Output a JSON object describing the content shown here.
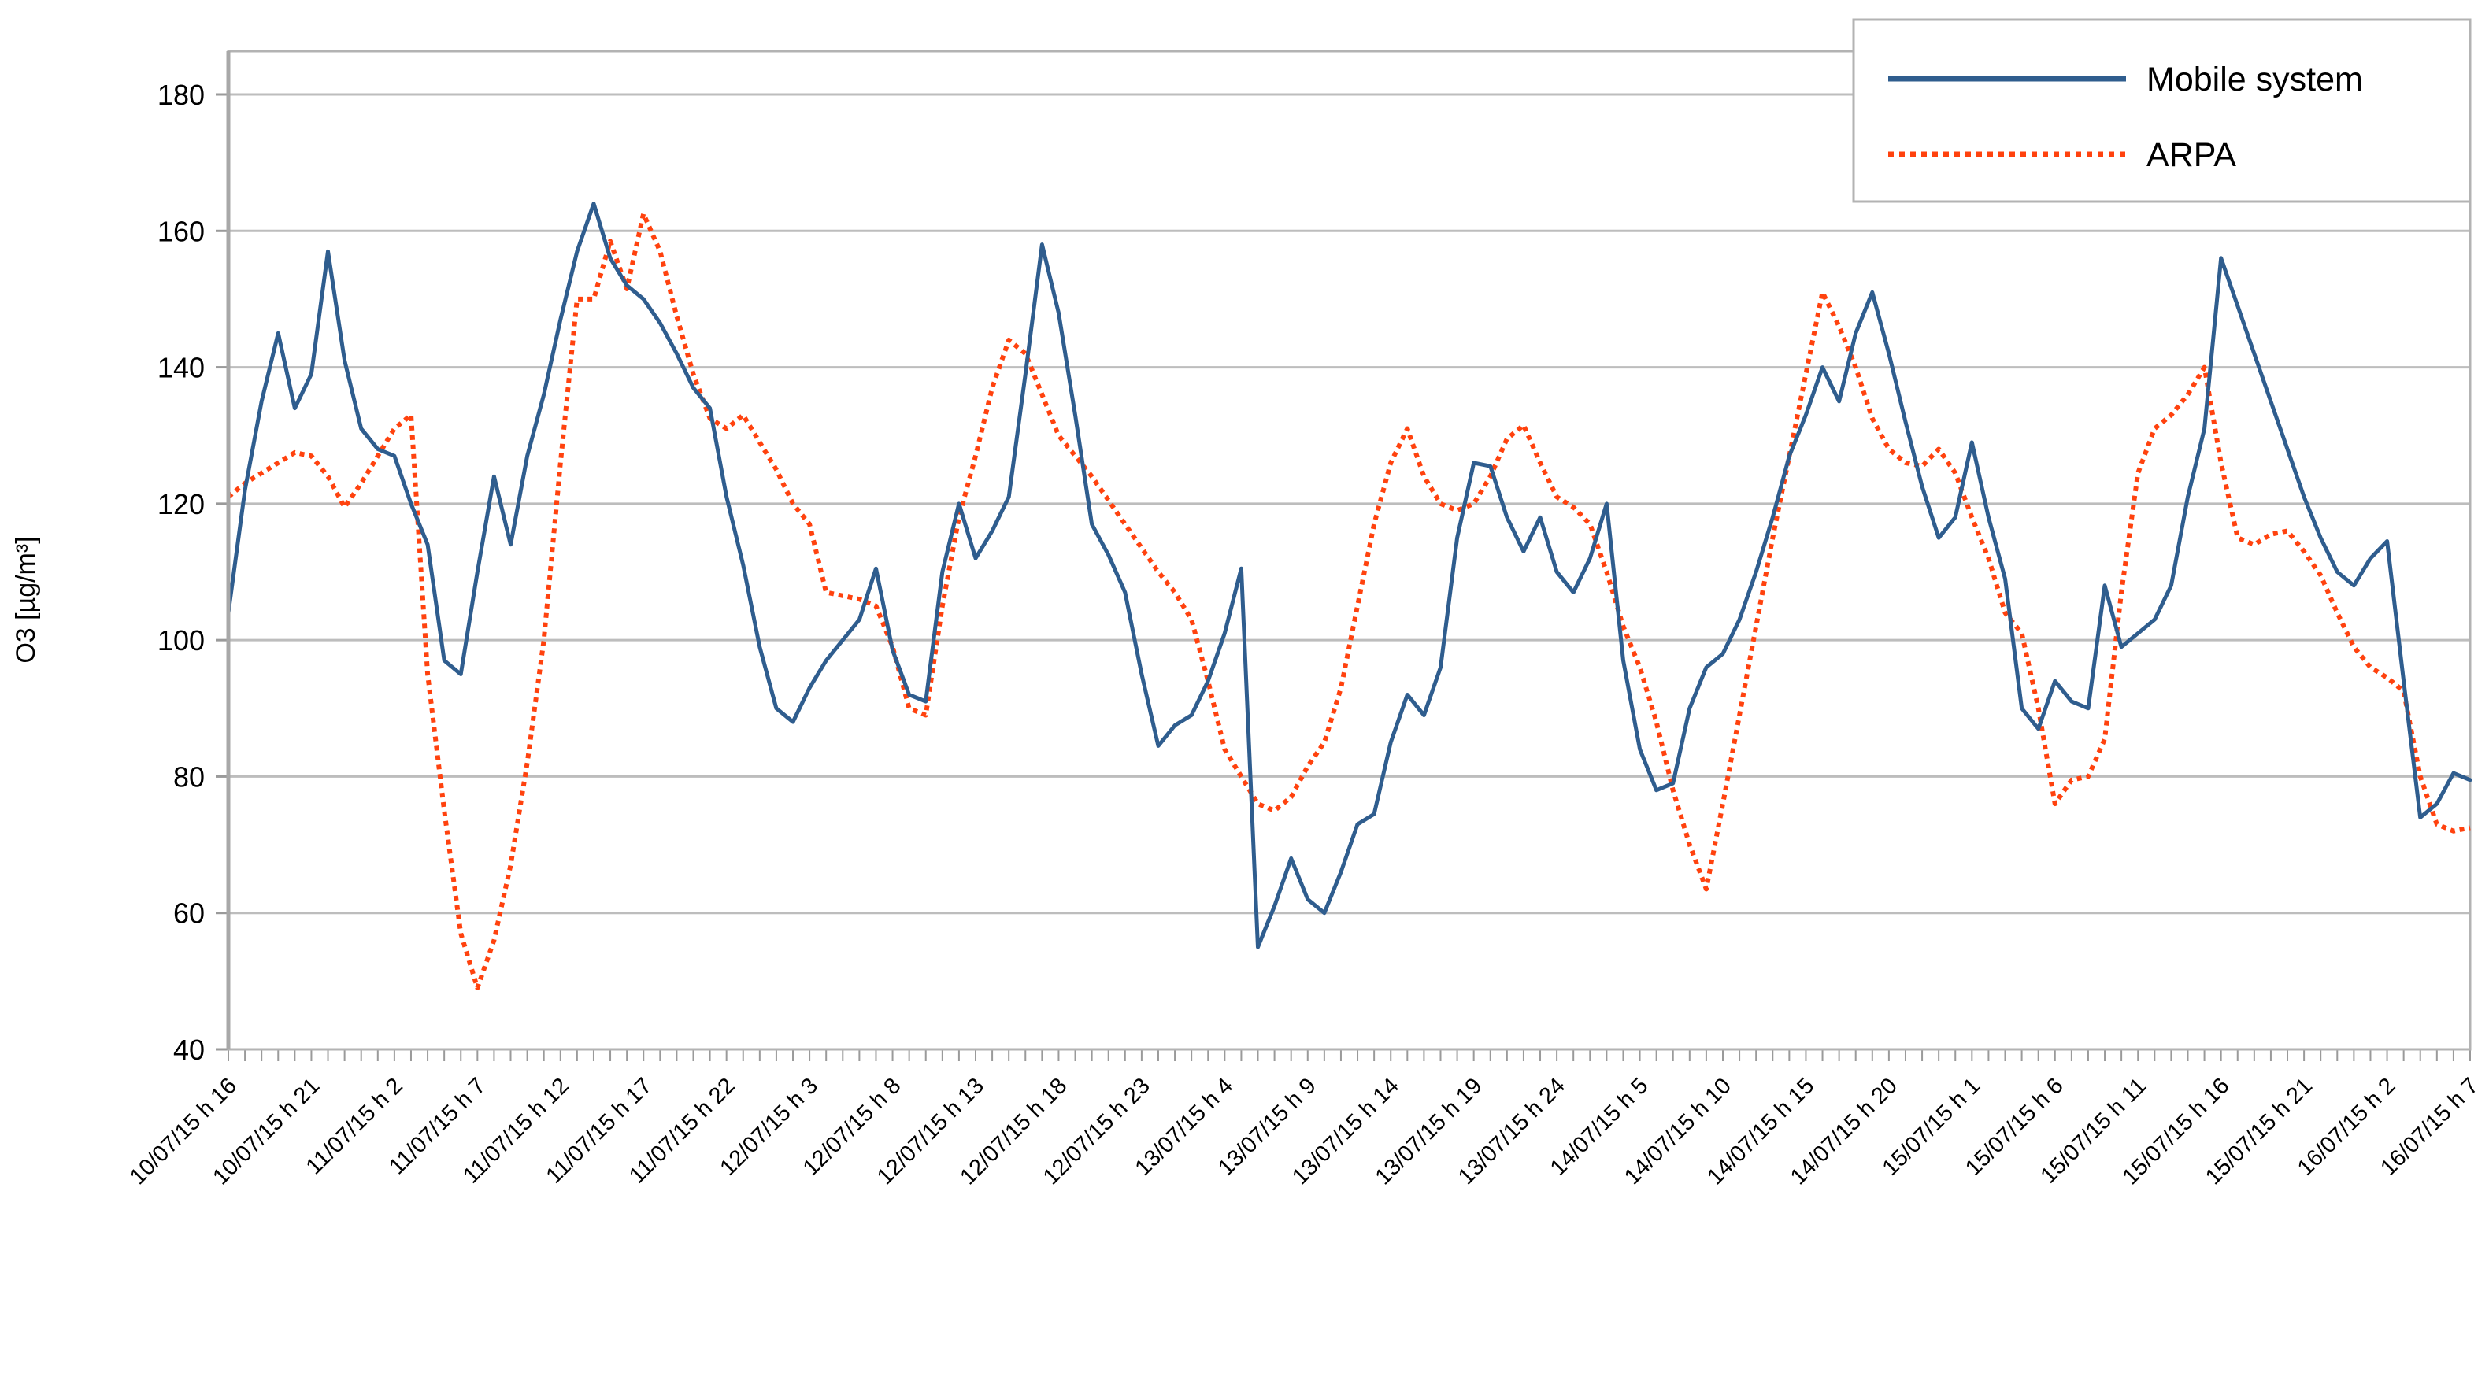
{
  "chart_data": {
    "type": "line",
    "title": "",
    "ylabel": "O3 [µg/m³]",
    "xlabel": "",
    "ylim": [
      40,
      186
    ],
    "yticks": [
      40,
      60,
      80,
      100,
      120,
      140,
      160,
      180
    ],
    "grid": true,
    "legend_position": "top-right",
    "points_count": 136,
    "x_label_every": 5,
    "x_tick_labels": [
      "10/07/15 h 16",
      "10/07/15 h 21",
      "11/07/15 h 2",
      "11/07/15 h 7",
      "11/07/15 h 12",
      "11/07/15 h 17",
      "11/07/15 h 22",
      "12/07/15 h 3",
      "12/07/15 h 8",
      "12/07/15 h 13",
      "12/07/15 h 18",
      "12/07/15 h 23",
      "13/07/15 h 4",
      "13/07/15 h 9",
      "13/07/15 h 14",
      "13/07/15 h 19",
      "13/07/15 h 24",
      "14/07/15 h 5",
      "14/07/15 h 10",
      "14/07/15 h 15",
      "14/07/15 h 20",
      "15/07/15 h 1",
      "15/07/15 h 6",
      "15/07/15 h 11",
      "15/07/15 h 16",
      "15/07/15 h 21",
      "16/07/15 h 2",
      "16/07/15 h 7"
    ],
    "series": [
      {
        "name": "Mobile system",
        "color": "#2F5D8E",
        "style": "solid",
        "values": [
          104,
          122,
          135,
          145,
          134,
          139,
          157,
          141,
          131,
          128,
          127,
          120,
          114,
          97,
          95,
          110,
          124,
          114,
          127,
          136,
          147,
          157,
          164,
          156,
          152,
          150,
          146.5,
          142,
          137,
          134,
          121,
          111,
          99,
          90,
          88,
          93,
          97,
          100,
          103,
          110.5,
          98.5,
          92,
          91,
          110,
          120,
          112,
          116,
          121,
          139,
          158,
          148,
          133,
          117,
          112.5,
          107,
          95,
          84.5,
          87.5,
          89,
          94,
          101,
          110.5,
          55,
          61,
          68,
          62,
          60,
          66,
          73,
          74.5,
          85,
          92,
          89,
          96,
          115,
          126,
          125.5,
          118,
          113,
          118,
          110,
          107,
          112,
          120,
          97,
          84,
          78,
          79,
          90,
          96,
          98,
          103,
          110,
          118,
          127,
          133,
          140,
          135,
          145,
          151,
          142,
          132,
          122.5,
          115,
          118,
          129,
          118,
          109,
          90,
          87,
          94,
          91,
          90,
          108,
          99,
          101,
          103,
          108,
          121,
          131,
          156,
          149,
          142,
          135,
          128,
          121,
          115,
          110,
          108,
          112,
          114.5,
          94,
          74,
          76,
          80.5,
          79.5
        ]
      },
      {
        "name": "ARPA",
        "color": "#FF420E",
        "style": "dotted",
        "values": [
          121,
          123,
          124.5,
          126,
          127.5,
          127,
          124,
          119.5,
          123,
          127,
          131,
          133,
          95,
          75,
          57,
          49,
          56,
          67,
          82,
          100,
          126,
          150,
          150,
          158.5,
          151.5,
          162.5,
          157,
          147.5,
          139,
          132.5,
          131,
          133,
          129,
          125,
          120,
          117,
          107,
          106.5,
          106,
          105,
          99,
          90,
          89,
          105,
          118,
          127,
          137,
          144,
          142,
          136,
          130,
          127,
          124,
          120.5,
          117,
          113.5,
          110,
          107,
          103,
          94,
          84,
          80,
          76,
          75,
          77,
          81.5,
          85,
          93,
          105,
          117,
          126,
          131,
          124,
          120,
          119,
          120,
          124,
          129.5,
          131.5,
          126,
          121,
          119.5,
          117,
          110,
          102,
          96,
          88,
          78,
          70,
          63.5,
          76,
          89,
          102,
          115,
          127,
          139,
          151,
          146,
          140,
          132.5,
          128,
          126,
          125.5,
          128,
          124.5,
          118,
          112,
          104,
          101,
          90,
          76,
          79.5,
          80,
          85.5,
          107,
          124.5,
          131,
          133,
          136,
          140,
          126,
          115,
          114,
          115.5,
          116,
          113,
          109.5,
          104,
          99,
          96,
          94.5,
          92.5,
          80,
          73,
          72,
          72.5
        ]
      }
    ],
    "colors": {
      "grid": "#BDBDBD",
      "axis": "#A8A8A8",
      "border": "#B3B3B3",
      "tick": "#9A9A9A",
      "background": "#FFFFFF"
    }
  }
}
